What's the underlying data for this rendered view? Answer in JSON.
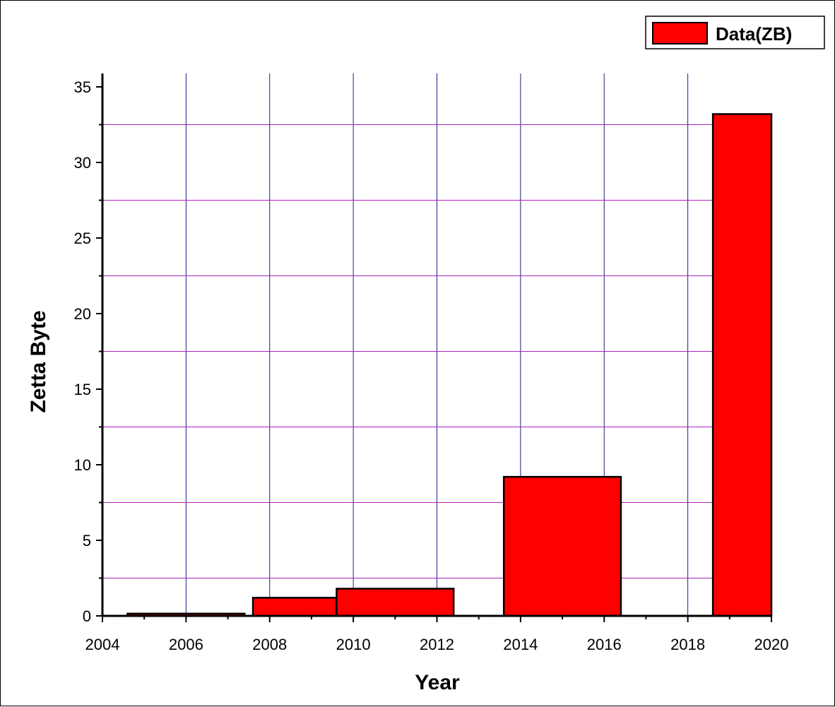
{
  "chart_data": {
    "type": "bar",
    "xlabel": "Year",
    "ylabel": "Zetta Byte",
    "xlim": [
      2004,
      2020
    ],
    "ylim": [
      0,
      35
    ],
    "x_ticks": [
      2004,
      2006,
      2008,
      2010,
      2012,
      2014,
      2016,
      2018,
      2020
    ],
    "y_ticks": [
      0,
      5,
      10,
      15,
      20,
      25,
      30,
      35
    ],
    "grid": true,
    "legend_position": "top-right",
    "series": [
      {
        "name": "Data(ZB)",
        "bars": [
          {
            "x_start": 2004.6,
            "x_end": 2007.4,
            "value": 0.15
          },
          {
            "x_start": 2007.6,
            "x_end": 2009.6,
            "value": 1.2
          },
          {
            "x_start": 2009.6,
            "x_end": 2012.4,
            "value": 1.8
          },
          {
            "x_start": 2013.6,
            "x_end": 2016.4,
            "value": 9.2
          },
          {
            "x_start": 2018.6,
            "x_end": 2020.0,
            "value": 33.2
          }
        ]
      }
    ],
    "colors": {
      "bar_fill": "#ff0000",
      "bar_stroke": "#000000",
      "grid_vertical": "#1c1c80",
      "grid_horizontal": "#b020c0"
    }
  }
}
